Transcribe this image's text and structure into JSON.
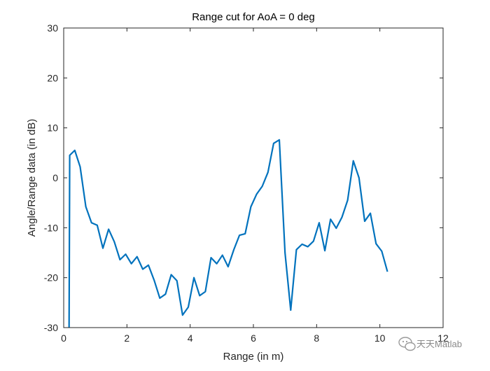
{
  "chart_data": {
    "type": "line",
    "title": "Range cut for AoA = 0 deg",
    "xlabel": "Range (in m)",
    "ylabel": "Angle/Range data (in dB)",
    "xlim": [
      0,
      12
    ],
    "ylim": [
      -30,
      30
    ],
    "xticks": [
      0,
      2,
      4,
      6,
      8,
      10,
      12
    ],
    "yticks": [
      -30,
      -20,
      -10,
      0,
      10,
      20,
      30
    ],
    "grid": false,
    "line_color": "#0072BD",
    "series": [
      {
        "x": [
          0.17,
          0.19,
          0.35,
          0.52,
          0.7,
          0.88,
          1.06,
          1.24,
          1.42,
          1.6,
          1.78,
          1.96,
          2.14,
          2.32,
          2.5,
          2.68,
          2.86,
          3.04,
          3.22,
          3.4,
          3.58,
          3.76,
          3.94,
          4.12,
          4.3,
          4.48,
          4.66,
          4.84,
          5.02,
          5.2,
          5.38,
          5.56,
          5.74,
          5.92,
          6.1,
          6.28,
          6.46,
          6.64,
          6.82,
          7.0,
          7.18,
          7.36,
          7.54,
          7.72,
          7.9,
          8.08,
          8.26,
          8.44,
          8.62,
          8.8,
          8.98,
          9.16,
          9.34,
          9.52,
          9.7,
          9.88,
          10.06,
          10.24
        ],
        "y": [
          -30,
          4.5,
          5.5,
          2.2,
          -5.8,
          -9.0,
          -9.5,
          -14.1,
          -10.3,
          -12.8,
          -16.4,
          -15.3,
          -17.2,
          -15.8,
          -18.3,
          -17.5,
          -20.5,
          -24.1,
          -23.3,
          -19.4,
          -20.6,
          -27.5,
          -25.9,
          -20.0,
          -23.6,
          -22.8,
          -16.0,
          -17.2,
          -15.5,
          -17.8,
          -14.4,
          -11.5,
          -11.2,
          -5.8,
          -3.3,
          -1.7,
          1.1,
          6.9,
          7.6,
          -15.0,
          -26.5,
          -14.4,
          -13.3,
          -13.8,
          -12.7,
          -9.0,
          -14.6,
          -8.3,
          -10.1,
          -7.9,
          -4.5,
          3.4,
          0.0,
          -8.7,
          -7.1,
          -13.2,
          -14.7,
          -18.8
        ]
      }
    ]
  },
  "watermark": {
    "text": "天天Matlab",
    "icon": "wechat-icon"
  }
}
